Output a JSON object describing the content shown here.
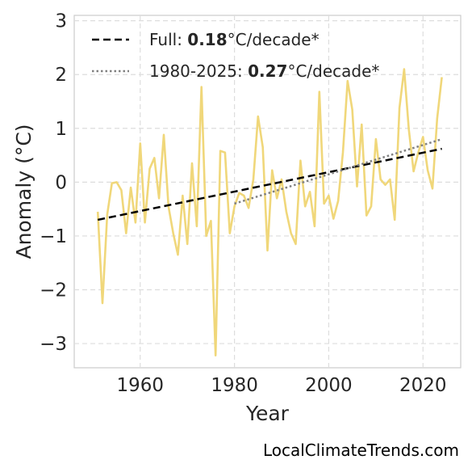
{
  "chart_data": {
    "type": "line",
    "xlabel": "Year",
    "ylabel": "Anomaly (°C)",
    "xlim": [
      1946,
      2028
    ],
    "ylim": [
      -3.45,
      3.1
    ],
    "xticks": [
      1960,
      1980,
      2000,
      2020
    ],
    "yticks": [
      -3,
      -2,
      -1,
      0,
      1,
      2,
      3
    ],
    "ytick_labels": [
      "−3",
      "−2",
      "−1",
      "0",
      "1",
      "2",
      "3"
    ],
    "grid": true,
    "legend_position": "top-left",
    "series": [
      {
        "color": "#f0d77a",
        "x": [
          1951,
          1952,
          1953,
          1954,
          1955,
          1956,
          1957,
          1958,
          1959,
          1960,
          1961,
          1962,
          1963,
          1964,
          1965,
          1966,
          1967,
          1968,
          1969,
          1970,
          1971,
          1972,
          1973,
          1974,
          1975,
          1976,
          1977,
          1978,
          1979,
          1980,
          1981,
          1982,
          1983,
          1984,
          1985,
          1986,
          1987,
          1988,
          1989,
          1990,
          1991,
          1992,
          1993,
          1994,
          1995,
          1996,
          1997,
          1998,
          1999,
          2000,
          2001,
          2002,
          2003,
          2004,
          2005,
          2006,
          2007,
          2008,
          2009,
          2010,
          2011,
          2012,
          2013,
          2014,
          2015,
          2016,
          2017,
          2018,
          2019,
          2020,
          2021,
          2022,
          2023,
          2024
        ],
        "y": [
          -0.55,
          -2.25,
          -0.6,
          -0.02,
          0.0,
          -0.15,
          -0.95,
          -0.1,
          -0.75,
          0.72,
          -0.75,
          0.25,
          0.45,
          -0.3,
          0.88,
          -0.45,
          -0.95,
          -1.35,
          -0.25,
          -1.15,
          0.35,
          -0.82,
          1.77,
          -1.0,
          -0.72,
          -3.22,
          0.58,
          0.55,
          -0.95,
          -0.45,
          -0.2,
          -0.25,
          -0.48,
          0.05,
          1.22,
          0.65,
          -1.27,
          0.22,
          -0.3,
          0.05,
          -0.55,
          -0.95,
          -1.15,
          0.4,
          -0.45,
          -0.18,
          -0.82,
          1.68,
          -0.4,
          -0.25,
          -0.68,
          -0.35,
          0.55,
          1.88,
          1.35,
          -0.08,
          1.07,
          -0.62,
          -0.45,
          0.8,
          0.05,
          -0.05,
          0.05,
          -0.7,
          1.38,
          2.1,
          0.98,
          0.2,
          0.55,
          0.84,
          0.22,
          -0.12,
          1.18,
          1.95
        ]
      }
    ],
    "trend_lines": [
      {
        "name": "Full",
        "value_label": "0.18",
        "unit_label": "°C/decade*",
        "style": "dashed",
        "color": "#000000",
        "x": [
          1951,
          2024
        ],
        "y": [
          -0.7,
          0.62
        ]
      },
      {
        "name": "1980-2025",
        "value_label": "0.27",
        "unit_label": "°C/decade*",
        "style": "dotted",
        "color": "#808080",
        "x": [
          1980,
          2024
        ],
        "y": [
          -0.4,
          0.8
        ]
      }
    ]
  },
  "credit": "LocalClimateTrends.com"
}
